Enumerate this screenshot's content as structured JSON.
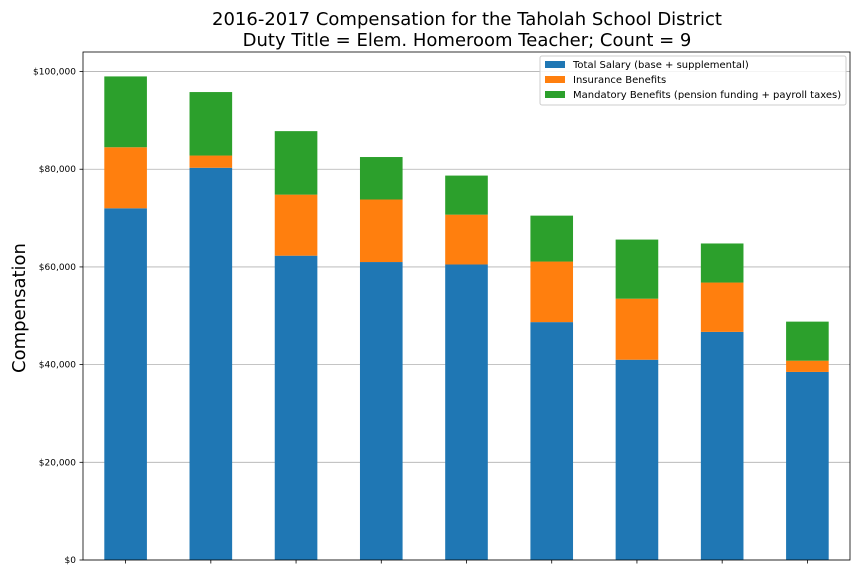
{
  "chart_data": {
    "type": "bar",
    "stacked": true,
    "title_lines": [
      "2016-2017 Compensation for the Taholah School District",
      "Duty Title = Elem. Homeroom Teacher; Count = 9"
    ],
    "xlabel": "",
    "ylabel": "Compensation",
    "ylim": [
      0,
      104000
    ],
    "yticks": [
      0,
      20000,
      40000,
      60000,
      80000,
      100000
    ],
    "ytick_labels": [
      "$0",
      "$20,000",
      "$40,000",
      "$60,000",
      "$80,000",
      "$100,000"
    ],
    "categories": [
      "",
      "",
      "",
      "",
      "",
      "",
      "",
      "",
      ""
    ],
    "grid": "horizontal",
    "legend_position": "top-right",
    "series": [
      {
        "name": "Total Salary (base + supplemental)",
        "color": "#1f77b4",
        "values": [
          72000,
          80300,
          62300,
          61000,
          60500,
          48700,
          41000,
          46700,
          38500
        ]
      },
      {
        "name": "Insurance Benefits",
        "color": "#ff7f0e",
        "values": [
          12500,
          2500,
          12500,
          12800,
          10200,
          12400,
          12500,
          10100,
          2300
        ]
      },
      {
        "name": "Mandatory Benefits (pension funding + payroll taxes)",
        "color": "#2ca02c",
        "values": [
          14500,
          13000,
          13000,
          8700,
          8000,
          9400,
          12100,
          8000,
          8000
        ]
      }
    ]
  }
}
